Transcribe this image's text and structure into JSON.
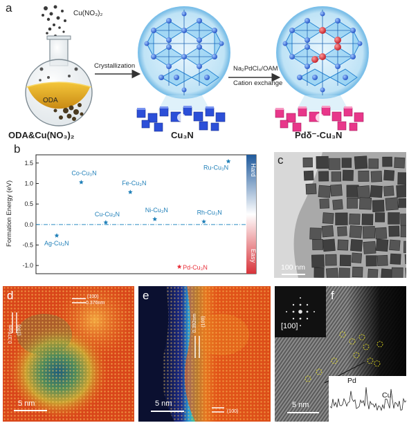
{
  "panel_letters": {
    "a": "a",
    "b": "b",
    "c": "c",
    "d": "d",
    "e": "e",
    "f": "f"
  },
  "panel_a": {
    "precursor_label": "Cu(NO₃)₂",
    "solvent_label": "ODA",
    "flask_caption": "ODA&Cu(NO₃)₂",
    "step1_label": "Crystallization",
    "product1_label": "Cu₃N",
    "step2_reagent": "Na₂PdCl₄/OAM",
    "step2_label": "Cation exchange",
    "product2_label": "Pdδ⁻-Cu₃N",
    "colors": {
      "cu3n_cube": "#2c4fd8",
      "pd_cube": "#e8378a",
      "framework": "#3aa0e6",
      "pd_atom": "#d92b3a"
    }
  },
  "panel_b": {
    "chart_data": {
      "type": "scatter",
      "ylabel": "Formation Energy (eV)",
      "ylim": [
        -1.2,
        1.7
      ],
      "yticks": [
        "1.5",
        "1.0",
        "0.5",
        "0.0",
        "-0.5",
        "-1.0"
      ],
      "hard_label": "Hard",
      "easy_label": "Easy",
      "points": [
        {
          "label": "Ag-Cu₃N",
          "x": 1,
          "y": -0.27,
          "color": "#1f7fb8"
        },
        {
          "label": "Co-Cu₃N",
          "x": 2,
          "y": 1.03,
          "color": "#1f7fb8"
        },
        {
          "label": "Cu-Cu₃N",
          "x": 3,
          "y": 0.05,
          "color": "#1f7fb8"
        },
        {
          "label": "Fe-Cu₃N",
          "x": 4,
          "y": 0.79,
          "color": "#1f7fb8"
        },
        {
          "label": "Ni-Cu₃N",
          "x": 5,
          "y": 0.13,
          "color": "#1f7fb8"
        },
        {
          "label": "Pd-Cu₃N",
          "x": 6,
          "y": -1.03,
          "color": "#e8303a"
        },
        {
          "label": "Rh-Cu₃N",
          "x": 7,
          "y": 0.07,
          "color": "#1f7fb8"
        },
        {
          "label": "Ru-Cu₃N",
          "x": 8,
          "y": 1.54,
          "color": "#1f7fb8"
        }
      ],
      "reference_line": 0.0,
      "colors": {
        "axis": "#222222",
        "hard": "#1f5a9c",
        "easy": "#d8333a"
      }
    }
  },
  "panel_c": {
    "scale_label": "100 nm"
  },
  "panel_d": {
    "scale_label": "5 nm",
    "spacing1": "0.376nm",
    "plane1": "(100)",
    "spacing2": "0.376nm",
    "plane2": "(100)"
  },
  "panel_e": {
    "scale_label": "5 nm",
    "spacing1": "0.392nm",
    "plane1": "(100)",
    "plane2": "(100)"
  },
  "panel_f": {
    "scale_label": "5 nm",
    "fft_label": "[100]",
    "profile_pd": "Pd",
    "profile_cu": "Cu"
  }
}
